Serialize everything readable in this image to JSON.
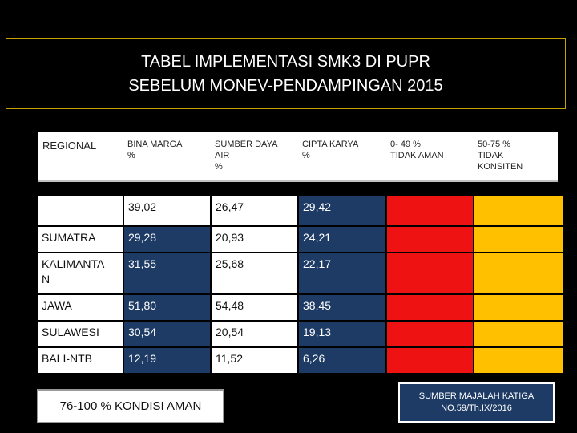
{
  "title": {
    "line1": "TABEL IMPLEMENTASI SMK3 DI PUPR",
    "line2": "SEBELUM MONEV-PENDAMPINGAN 2015"
  },
  "table": {
    "headers": [
      "REGIONAL",
      "BINA MARGA\n%",
      "SUMBER DAYA\nAIR\n%",
      "CIPTA KARYA\n%",
      "0- 49 %\nTIDAK AMAN",
      "50-75 %\nTIDAK\nKONSITEN"
    ],
    "rows": [
      {
        "region": "",
        "bina_marga": "39,02",
        "sda": "26,47",
        "cipta_karya": "29,42"
      },
      {
        "region": "SUMATRA",
        "bina_marga": "29,28",
        "sda": "20,93",
        "cipta_karya": "24,21"
      },
      {
        "region": "KALIMANTA\nN",
        "bina_marga": "31,55",
        "sda": "25,68",
        "cipta_karya": "22,17"
      },
      {
        "region": "JAWA",
        "bina_marga": "51,80",
        "sda": "54,48",
        "cipta_karya": "38,45"
      },
      {
        "region": "SULAWESI",
        "bina_marga": "30,54",
        "sda": "20,54",
        "cipta_karya": "19,13"
      },
      {
        "region": "BALI-NTB",
        "bina_marga": "12,19",
        "sda": "11,52",
        "cipta_karya": "6,26"
      }
    ]
  },
  "legend": {
    "label": "76-100 % KONDISI AMAN"
  },
  "source": {
    "line1": "SUMBER MAJALAH KATIGA",
    "line2": "NO.59/Th.IX/2016"
  },
  "colors": {
    "navy": "#1e3b65",
    "red": "#ee1212",
    "yellow": "#ffc000",
    "border_gold": "#c8a000"
  }
}
